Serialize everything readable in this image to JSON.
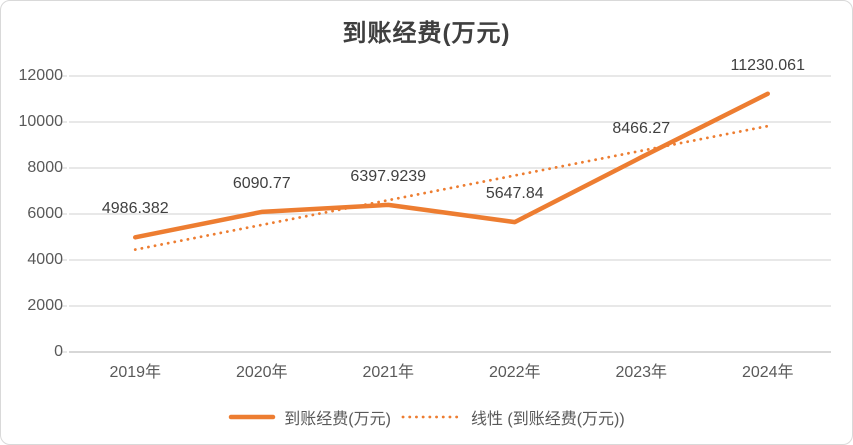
{
  "chart_data": {
    "type": "line",
    "title": "到账经费(万元)",
    "categories": [
      "2019年",
      "2020年",
      "2021年",
      "2022年",
      "2023年",
      "2024年"
    ],
    "series": [
      {
        "name": "到账经费(万元)",
        "line_style": "solid",
        "values": [
          4986.382,
          6090.77,
          6397.9239,
          5647.84,
          8466.27,
          11230.061
        ],
        "labels": [
          "4986.382",
          "6090.77",
          "6397.9239",
          "5647.84",
          "8466.27",
          "11230.061"
        ]
      },
      {
        "name": "线性 (到账经费(万元))",
        "line_style": "dotted",
        "derived": "linear_trendline_of_first_series"
      }
    ],
    "ylim": [
      0,
      12000
    ],
    "y_ticks": [
      "0",
      "2000",
      "4000",
      "6000",
      "8000",
      "10000",
      "12000"
    ],
    "grid": "horizontal",
    "legend_position": "bottom"
  },
  "colors": {
    "accent": "#ED7D31",
    "gridline": "#D9D9D9",
    "axis_line": "#BFBFBF",
    "axis_text": "#595959",
    "data_label_text": "#404040",
    "title_text": "#3F3F3F",
    "background": "#FFFFFF",
    "frame_border": "#D9D9D9"
  }
}
